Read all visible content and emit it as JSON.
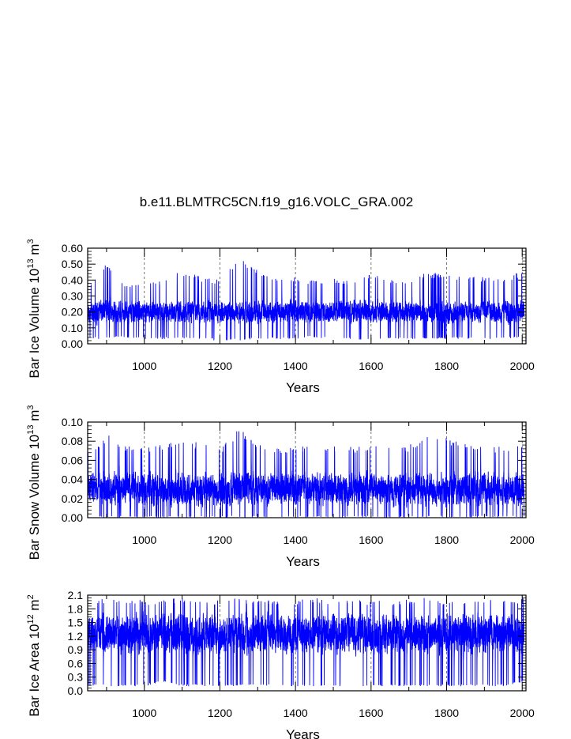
{
  "figure": {
    "title": "b.e11.BLMTRC5CN.f19_g16.VOLC_GRA.002",
    "series_color": "#0000ff"
  },
  "chart_data": [
    {
      "type": "line",
      "title": "b.e11.BLMTRC5CN.f19_g16.VOLC_GRA.002",
      "xlabel": "Years",
      "ylabel": {
        "main": "Bar Ice Volume 10",
        "exp": "13",
        "unit": " m",
        "unit_exp": "3"
      },
      "xlim": [
        850,
        2010
      ],
      "ylim": [
        0.0,
        0.6
      ],
      "x_ticks": [
        1000,
        1200,
        1400,
        1600,
        1800,
        2000
      ],
      "x_tick_labels": [
        "1000",
        "1200",
        "1400",
        "1600",
        "1800",
        "2000"
      ],
      "y_ticks": [
        0.0,
        0.1,
        0.2,
        0.3,
        0.4,
        0.5,
        0.6
      ],
      "y_tick_labels": [
        "0.00",
        "0.10",
        "0.20",
        "0.30",
        "0.40",
        "0.50",
        "0.60"
      ],
      "x_grid": [
        1000,
        1200,
        1400,
        1600,
        1800,
        2000
      ],
      "series": [
        {
          "name": "Bar Ice Volume",
          "style": {
            "base": 0.2,
            "amp": 0.09,
            "min": 0.02,
            "max": 0.6
          },
          "envelope": {
            "x": [
              850,
              900,
              950,
              1000,
              1050,
              1100,
              1150,
              1200,
              1250,
              1300,
              1350,
              1400,
              1450,
              1500,
              1550,
              1600,
              1650,
              1700,
              1750,
              1800,
              1850,
              1900,
              1950,
              2005
            ],
            "min": [
              0.03,
              0.03,
              0.04,
              0.03,
              0.03,
              0.03,
              0.03,
              0.02,
              0.02,
              0.03,
              0.03,
              0.03,
              0.04,
              0.03,
              0.03,
              0.02,
              0.03,
              0.03,
              0.03,
              0.03,
              0.03,
              0.03,
              0.03,
              0.04
            ],
            "max": [
              0.35,
              0.52,
              0.37,
              0.38,
              0.4,
              0.46,
              0.42,
              0.4,
              0.54,
              0.46,
              0.42,
              0.42,
              0.4,
              0.41,
              0.4,
              0.45,
              0.4,
              0.4,
              0.45,
              0.44,
              0.42,
              0.42,
              0.4,
              0.47
            ]
          }
        }
      ]
    },
    {
      "type": "line",
      "xlabel": "Years",
      "ylabel": {
        "main": "Bar Snow Volume 10",
        "exp": "13",
        "unit": " m",
        "unit_exp": "3"
      },
      "xlim": [
        850,
        2010
      ],
      "ylim": [
        0.0,
        0.1
      ],
      "x_ticks": [
        1000,
        1200,
        1400,
        1600,
        1800,
        2000
      ],
      "x_tick_labels": [
        "1000",
        "1200",
        "1400",
        "1600",
        "1800",
        "2000"
      ],
      "y_ticks": [
        0.0,
        0.02,
        0.04,
        0.06,
        0.08,
        0.1
      ],
      "y_tick_labels": [
        "0.00",
        "0.02",
        "0.04",
        "0.06",
        "0.08",
        "0.10"
      ],
      "x_grid": [
        1000,
        1200,
        1400,
        1600,
        1800,
        2000
      ],
      "series": [
        {
          "name": "Bar Snow Volume",
          "style": {
            "base": 0.03,
            "amp": 0.022,
            "min": 0.0,
            "max": 0.1
          },
          "envelope": {
            "x": [
              850,
              900,
              950,
              1000,
              1050,
              1100,
              1150,
              1200,
              1250,
              1300,
              1350,
              1400,
              1450,
              1500,
              1550,
              1600,
              1650,
              1700,
              1750,
              1800,
              1850,
              1900,
              1950,
              2005
            ],
            "min": [
              0.0,
              0.0,
              0.0,
              0.0,
              0.0,
              0.0,
              0.0,
              0.0,
              0.0,
              0.0,
              0.0,
              0.0,
              0.0,
              0.0,
              0.0,
              0.0,
              0.0,
              0.0,
              0.0,
              0.0,
              0.0,
              0.0,
              0.0,
              0.0
            ],
            "max": [
              0.068,
              0.088,
              0.075,
              0.073,
              0.077,
              0.082,
              0.078,
              0.072,
              0.095,
              0.078,
              0.074,
              0.075,
              0.074,
              0.076,
              0.074,
              0.077,
              0.074,
              0.076,
              0.09,
              0.085,
              0.078,
              0.076,
              0.074,
              0.076
            ]
          }
        }
      ]
    },
    {
      "type": "line",
      "xlabel": "Years",
      "ylabel": {
        "main": "Bar Ice Area 10",
        "exp": "12",
        "unit": " m",
        "unit_exp": "2"
      },
      "xlim": [
        850,
        2010
      ],
      "ylim": [
        0.0,
        2.1
      ],
      "x_ticks": [
        1000,
        1200,
        1400,
        1600,
        1800,
        2000
      ],
      "x_tick_labels": [
        "1000",
        "1200",
        "1400",
        "1600",
        "1800",
        "2000"
      ],
      "y_ticks": [
        0.0,
        0.3,
        0.6,
        0.9,
        1.2,
        1.5,
        1.8,
        2.1
      ],
      "y_tick_labels": [
        "0.0",
        "0.3",
        "0.6",
        "0.9",
        "1.2",
        "1.5",
        "1.8",
        "2.1"
      ],
      "x_grid": [
        1000,
        1200,
        1400,
        1600,
        1800,
        2000
      ],
      "series": [
        {
          "name": "Bar Ice Area",
          "style": {
            "base": 1.25,
            "amp": 0.55,
            "min": 0.05,
            "max": 2.05
          },
          "envelope": {
            "x": [
              850,
              900,
              950,
              1000,
              1050,
              1100,
              1150,
              1200,
              1250,
              1300,
              1350,
              1400,
              1450,
              1500,
              1550,
              1600,
              1650,
              1700,
              1750,
              1800,
              1850,
              1900,
              1950,
              2005
            ],
            "min": [
              0.1,
              0.1,
              0.1,
              0.1,
              0.2,
              0.1,
              0.1,
              0.1,
              0.1,
              0.1,
              0.1,
              0.1,
              0.1,
              0.1,
              0.1,
              0.1,
              0.1,
              0.1,
              0.1,
              0.1,
              0.1,
              0.1,
              0.1,
              0.2
            ],
            "max": [
              2.0,
              2.05,
              2.0,
              2.0,
              2.0,
              2.05,
              2.0,
              2.0,
              2.05,
              2.0,
              2.0,
              2.0,
              2.05,
              2.0,
              2.0,
              2.0,
              2.0,
              2.0,
              2.05,
              2.0,
              2.0,
              2.0,
              2.0,
              2.05
            ]
          }
        }
      ]
    }
  ]
}
